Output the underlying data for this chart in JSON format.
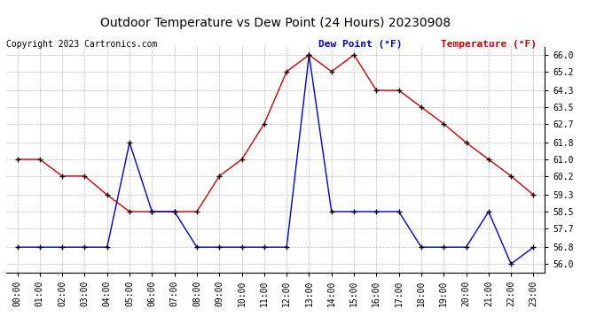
{
  "title": "Outdoor Temperature vs Dew Point (24 Hours) 20230908",
  "copyright": "Copyright 2023 Cartronics.com",
  "legend_dew": "Dew Point (°F)",
  "legend_temp": "Temperature (°F)",
  "hours": [
    0,
    1,
    2,
    3,
    4,
    5,
    6,
    7,
    8,
    9,
    10,
    11,
    12,
    13,
    14,
    15,
    16,
    17,
    18,
    19,
    20,
    21,
    22,
    23
  ],
  "temperature": [
    61.0,
    61.0,
    60.2,
    60.2,
    59.3,
    58.5,
    58.5,
    58.5,
    58.5,
    60.2,
    61.0,
    62.7,
    65.2,
    66.0,
    65.2,
    66.0,
    64.3,
    64.3,
    63.5,
    62.7,
    61.8,
    61.0,
    60.2,
    59.3
  ],
  "dew_point": [
    56.8,
    56.8,
    56.8,
    56.8,
    56.8,
    61.8,
    58.5,
    58.5,
    56.8,
    56.8,
    56.8,
    56.8,
    56.8,
    66.0,
    58.5,
    58.5,
    58.5,
    58.5,
    56.8,
    56.8,
    56.8,
    58.5,
    56.0,
    56.8
  ],
  "ylim": [
    55.6,
    66.4
  ],
  "yticks": [
    56.0,
    56.8,
    57.7,
    58.5,
    59.3,
    60.2,
    61.0,
    61.8,
    62.7,
    63.5,
    64.3,
    65.2,
    66.0
  ],
  "temp_color": "#cc0000",
  "dew_color": "#0000cc",
  "bg_color": "#ffffff",
  "grid_color": "#aaaaaa",
  "title_color": "#000000",
  "copyright_color": "#000000",
  "legend_dew_color": "#0000cc",
  "legend_temp_color": "#cc0000",
  "marker": "+",
  "marker_color": "#000000",
  "markersize": 5,
  "linewidth": 1.0
}
